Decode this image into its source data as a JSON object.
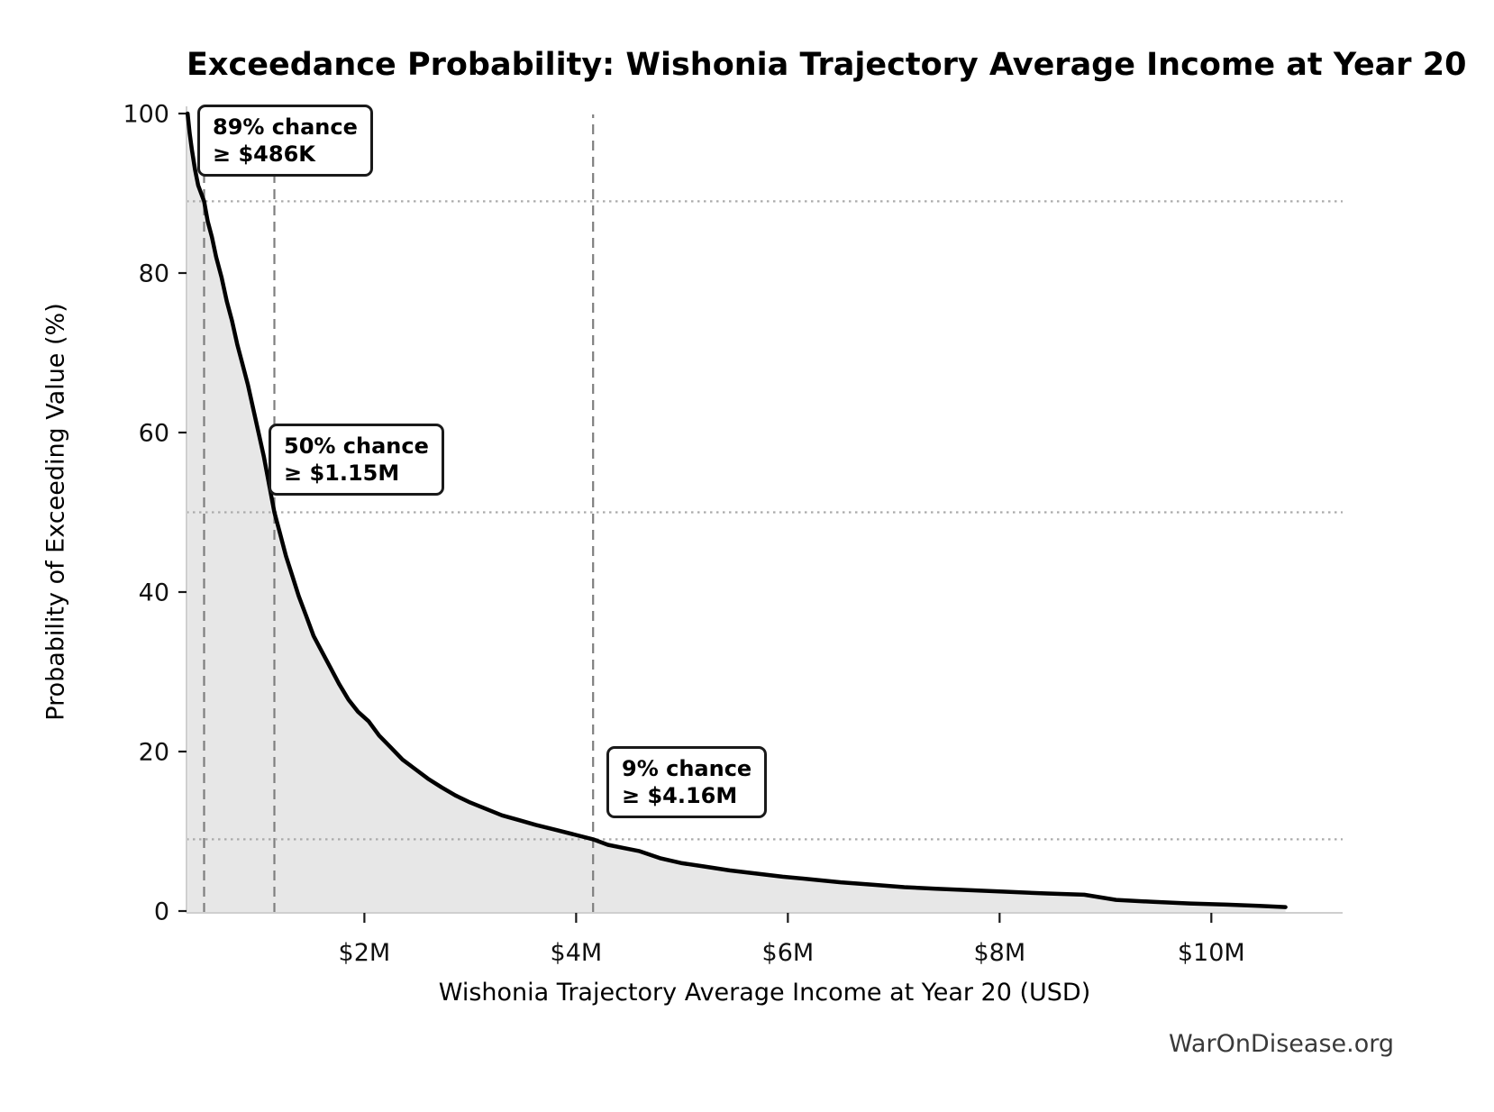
{
  "watermark": "WarOnDisease.org",
  "chart_data": {
    "type": "area",
    "title": "Exceedance Probability: Wishonia Trajectory Average Income at Year 20",
    "xlabel": "Wishonia Trajectory Average Income at Year 20 (USD)",
    "ylabel": "Probability of Exceeding Value (%)",
    "x_unit": "USD millions",
    "y_unit": "percent",
    "xlim": [
      0.32,
      11.24
    ],
    "ylim": [
      0,
      100
    ],
    "grid": "dotted horizontal and dashed vertical reference lines only",
    "legend": "none",
    "x_ticks": [
      {
        "value": 2,
        "label": "$2M"
      },
      {
        "value": 4,
        "label": "$4M"
      },
      {
        "value": 6,
        "label": "$6M"
      },
      {
        "value": 8,
        "label": "$8M"
      },
      {
        "value": 10,
        "label": "$10M"
      }
    ],
    "y_ticks": [
      {
        "value": 0,
        "label": "0"
      },
      {
        "value": 20,
        "label": "20"
      },
      {
        "value": 40,
        "label": "40"
      },
      {
        "value": 60,
        "label": "60"
      },
      {
        "value": 80,
        "label": "80"
      },
      {
        "value": 100,
        "label": "100"
      }
    ],
    "series": [
      {
        "name": "exceedance-probability",
        "x": [
          0.33,
          0.35,
          0.37,
          0.4,
          0.43,
          0.486,
          0.52,
          0.56,
          0.6,
          0.65,
          0.7,
          0.75,
          0.8,
          0.85,
          0.9,
          0.95,
          1.0,
          1.05,
          1.1,
          1.15,
          1.2,
          1.26,
          1.32,
          1.38,
          1.45,
          1.52,
          1.6,
          1.68,
          1.76,
          1.85,
          1.94,
          2.04,
          2.14,
          2.25,
          2.36,
          2.48,
          2.6,
          2.73,
          2.86,
          3.0,
          3.15,
          3.3,
          3.46,
          3.62,
          3.8,
          3.98,
          4.16,
          4.3,
          4.45,
          4.6,
          4.8,
          5.0,
          5.2,
          5.45,
          5.7,
          5.95,
          6.2,
          6.5,
          6.8,
          7.1,
          7.4,
          7.75,
          8.1,
          8.45,
          8.8,
          9.1,
          9.45,
          9.8,
          10.15,
          10.45,
          10.7
        ],
        "y": [
          100,
          97.5,
          95.5,
          93,
          91,
          89,
          86.5,
          84.5,
          82,
          79.5,
          76.5,
          74,
          71,
          68.5,
          66,
          63,
          60,
          57,
          53.5,
          50,
          47.5,
          44.5,
          42,
          39.5,
          37,
          34.5,
          32.5,
          30.5,
          28.5,
          26.5,
          25,
          23.8,
          22,
          20.5,
          19,
          17.8,
          16.6,
          15.5,
          14.5,
          13.6,
          12.8,
          12.0,
          11.4,
          10.8,
          10.2,
          9.6,
          9.0,
          8.3,
          7.9,
          7.5,
          6.6,
          6.0,
          5.6,
          5.1,
          4.7,
          4.3,
          4.0,
          3.6,
          3.3,
          3.0,
          2.8,
          2.6,
          2.4,
          2.2,
          2.05,
          1.4,
          1.15,
          0.95,
          0.8,
          0.65,
          0.5
        ]
      }
    ],
    "annotations": [
      {
        "line1": "89% chance",
        "line2": "≥ $486K",
        "x_value": 0.486,
        "prob": 89
      },
      {
        "line1": "50% chance",
        "line2": "≥ $1.15M",
        "x_value": 1.15,
        "prob": 50
      },
      {
        "line1": "9% chance",
        "line2": "≥ $4.16M",
        "x_value": 4.16,
        "prob": 9
      }
    ],
    "colors": {
      "curve": "#000000",
      "fill": "#e7e7e7",
      "dashed_ref_line": "#7f7f7f",
      "dotted_ref_line": "#ababab",
      "axis_spine": "#cfcfcf",
      "tick_mark": "#1a1a1a",
      "text": "#000000",
      "watermark_text": "#3a3a3a",
      "annotation_bg": "#ffffff",
      "annotation_border": "#1a1a1a",
      "background": "#ffffff"
    }
  }
}
